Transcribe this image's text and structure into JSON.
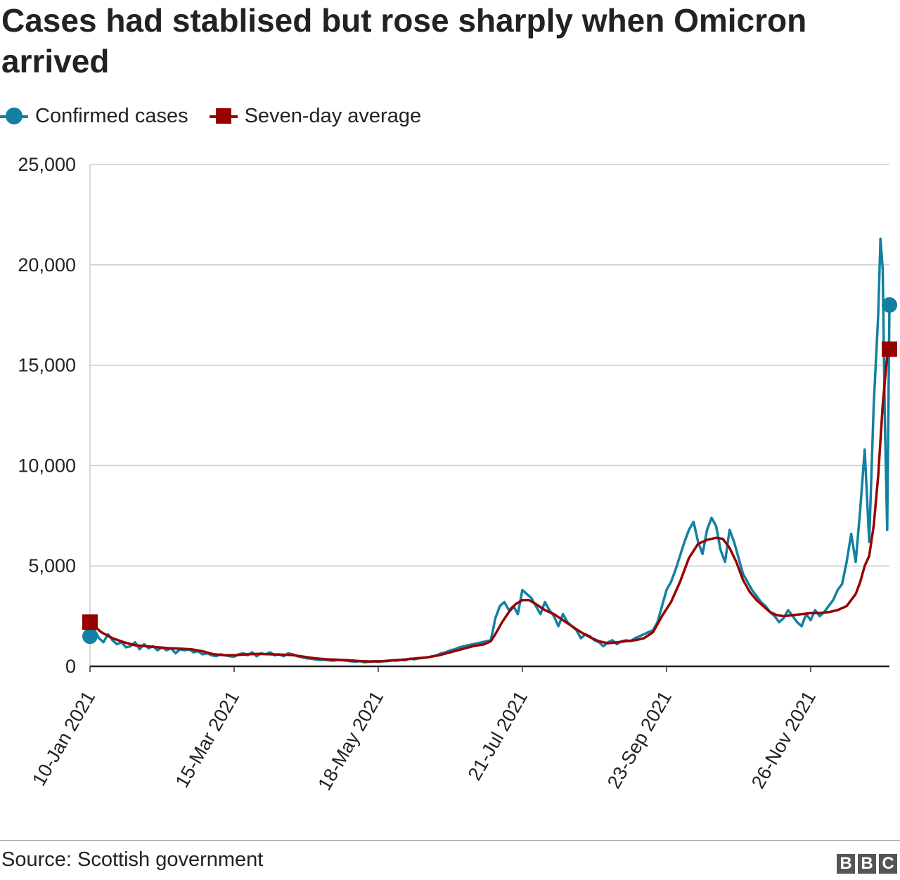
{
  "title": "Cases had stablised but rose sharply when Omicron arrived",
  "legend": [
    {
      "label": "Confirmed cases",
      "color": "#1380A1",
      "marker": "circle"
    },
    {
      "label": "Seven-day average",
      "color": "#990000",
      "marker": "square"
    }
  ],
  "source": "Source: Scottish government",
  "logo": [
    "B",
    "B",
    "C"
  ],
  "chart_data": {
    "type": "line",
    "title": "Cases had stablised but rose sharply when Omicron arrived",
    "xlabel": "",
    "ylabel": "",
    "ylim": [
      0,
      25000
    ],
    "y_ticks": [
      0,
      5000,
      10000,
      15000,
      20000,
      25000
    ],
    "y_tick_labels": [
      "0",
      "5,000",
      "10,000",
      "15,000",
      "20,000",
      "25,000"
    ],
    "x_range_days": [
      0,
      355
    ],
    "x_ticks": [
      0,
      64,
      128,
      192,
      256,
      320
    ],
    "x_tick_labels": [
      "10-Jan 2021",
      "15-Mar 2021",
      "18-May 2021",
      "21-Jul 2021",
      "23-Sep 2021",
      "26-Nov 2021"
    ],
    "grid": true,
    "legend_position": "top-left",
    "series": [
      {
        "name": "Confirmed cases",
        "x_unit": "days since 10-Jan 2021",
        "points": [
          [
            0,
            1500
          ],
          [
            2,
            1800
          ],
          [
            4,
            1400
          ],
          [
            6,
            1200
          ],
          [
            8,
            1600
          ],
          [
            10,
            1300
          ],
          [
            12,
            1100
          ],
          [
            14,
            1200
          ],
          [
            16,
            950
          ],
          [
            18,
            1000
          ],
          [
            20,
            1200
          ],
          [
            22,
            850
          ],
          [
            24,
            1100
          ],
          [
            26,
            900
          ],
          [
            28,
            1000
          ],
          [
            30,
            800
          ],
          [
            32,
            950
          ],
          [
            34,
            800
          ],
          [
            36,
            900
          ],
          [
            38,
            650
          ],
          [
            40,
            850
          ],
          [
            42,
            800
          ],
          [
            44,
            850
          ],
          [
            46,
            700
          ],
          [
            48,
            750
          ],
          [
            50,
            600
          ],
          [
            52,
            650
          ],
          [
            54,
            550
          ],
          [
            56,
            500
          ],
          [
            58,
            600
          ],
          [
            60,
            550
          ],
          [
            62,
            500
          ],
          [
            64,
            480
          ],
          [
            66,
            600
          ],
          [
            68,
            650
          ],
          [
            70,
            550
          ],
          [
            72,
            700
          ],
          [
            74,
            500
          ],
          [
            76,
            650
          ],
          [
            78,
            600
          ],
          [
            80,
            700
          ],
          [
            82,
            550
          ],
          [
            84,
            600
          ],
          [
            86,
            500
          ],
          [
            88,
            650
          ],
          [
            90,
            600
          ],
          [
            92,
            500
          ],
          [
            94,
            450
          ],
          [
            96,
            400
          ],
          [
            98,
            380
          ],
          [
            100,
            350
          ],
          [
            102,
            320
          ],
          [
            104,
            330
          ],
          [
            106,
            300
          ],
          [
            108,
            280
          ],
          [
            110,
            320
          ],
          [
            112,
            300
          ],
          [
            114,
            280
          ],
          [
            116,
            250
          ],
          [
            118,
            230
          ],
          [
            120,
            260
          ],
          [
            122,
            200
          ],
          [
            124,
            230
          ],
          [
            126,
            260
          ],
          [
            128,
            220
          ],
          [
            130,
            250
          ],
          [
            132,
            260
          ],
          [
            134,
            300
          ],
          [
            136,
            280
          ],
          [
            138,
            320
          ],
          [
            140,
            300
          ],
          [
            142,
            380
          ],
          [
            144,
            350
          ],
          [
            146,
            400
          ],
          [
            148,
            420
          ],
          [
            150,
            450
          ],
          [
            152,
            500
          ],
          [
            154,
            550
          ],
          [
            156,
            650
          ],
          [
            158,
            700
          ],
          [
            160,
            800
          ],
          [
            162,
            850
          ],
          [
            164,
            950
          ],
          [
            166,
            1000
          ],
          [
            168,
            1050
          ],
          [
            170,
            1100
          ],
          [
            172,
            1150
          ],
          [
            174,
            1200
          ],
          [
            176,
            1250
          ],
          [
            178,
            1300
          ],
          [
            180,
            2400
          ],
          [
            182,
            3000
          ],
          [
            184,
            3200
          ],
          [
            186,
            2800
          ],
          [
            188,
            3000
          ],
          [
            190,
            2600
          ],
          [
            192,
            3800
          ],
          [
            194,
            3600
          ],
          [
            196,
            3400
          ],
          [
            198,
            3000
          ],
          [
            200,
            2600
          ],
          [
            202,
            3200
          ],
          [
            204,
            2800
          ],
          [
            206,
            2500
          ],
          [
            208,
            2000
          ],
          [
            210,
            2600
          ],
          [
            212,
            2200
          ],
          [
            214,
            2000
          ],
          [
            216,
            1800
          ],
          [
            218,
            1400
          ],
          [
            220,
            1600
          ],
          [
            222,
            1500
          ],
          [
            224,
            1300
          ],
          [
            226,
            1200
          ],
          [
            228,
            1000
          ],
          [
            230,
            1200
          ],
          [
            232,
            1300
          ],
          [
            234,
            1100
          ],
          [
            236,
            1250
          ],
          [
            238,
            1300
          ],
          [
            240,
            1250
          ],
          [
            242,
            1400
          ],
          [
            244,
            1500
          ],
          [
            246,
            1600
          ],
          [
            248,
            1700
          ],
          [
            250,
            1800
          ],
          [
            252,
            2200
          ],
          [
            254,
            3000
          ],
          [
            256,
            3800
          ],
          [
            258,
            4200
          ],
          [
            260,
            4800
          ],
          [
            262,
            5500
          ],
          [
            264,
            6200
          ],
          [
            266,
            6800
          ],
          [
            268,
            7200
          ],
          [
            270,
            6200
          ],
          [
            272,
            5600
          ],
          [
            274,
            6800
          ],
          [
            276,
            7400
          ],
          [
            278,
            7000
          ],
          [
            280,
            5800
          ],
          [
            282,
            5200
          ],
          [
            284,
            6800
          ],
          [
            286,
            6200
          ],
          [
            288,
            5400
          ],
          [
            290,
            4600
          ],
          [
            292,
            4200
          ],
          [
            294,
            3800
          ],
          [
            296,
            3500
          ],
          [
            298,
            3200
          ],
          [
            300,
            3000
          ],
          [
            302,
            2700
          ],
          [
            304,
            2500
          ],
          [
            306,
            2200
          ],
          [
            308,
            2400
          ],
          [
            310,
            2800
          ],
          [
            312,
            2500
          ],
          [
            314,
            2200
          ],
          [
            316,
            2000
          ],
          [
            318,
            2600
          ],
          [
            320,
            2300
          ],
          [
            322,
            2800
          ],
          [
            324,
            2500
          ],
          [
            326,
            2700
          ],
          [
            328,
            3000
          ],
          [
            330,
            3300
          ],
          [
            332,
            3800
          ],
          [
            334,
            4100
          ],
          [
            336,
            5200
          ],
          [
            338,
            6600
          ],
          [
            340,
            5200
          ],
          [
            342,
            7800
          ],
          [
            344,
            10800
          ],
          [
            346,
            6200
          ],
          [
            348,
            13000
          ],
          [
            350,
            17500
          ],
          [
            351,
            21300
          ],
          [
            352,
            19800
          ],
          [
            353,
            12000
          ],
          [
            354,
            6800
          ],
          [
            355,
            18000
          ]
        ]
      },
      {
        "name": "Seven-day average",
        "x_unit": "days since 10-Jan 2021",
        "points": [
          [
            0,
            2200
          ],
          [
            5,
            1700
          ],
          [
            10,
            1400
          ],
          [
            15,
            1200
          ],
          [
            20,
            1050
          ],
          [
            25,
            1000
          ],
          [
            30,
            950
          ],
          [
            35,
            900
          ],
          [
            40,
            880
          ],
          [
            45,
            850
          ],
          [
            50,
            750
          ],
          [
            55,
            600
          ],
          [
            60,
            550
          ],
          [
            65,
            560
          ],
          [
            70,
            600
          ],
          [
            75,
            620
          ],
          [
            80,
            600
          ],
          [
            85,
            580
          ],
          [
            90,
            560
          ],
          [
            95,
            480
          ],
          [
            100,
            400
          ],
          [
            105,
            350
          ],
          [
            110,
            330
          ],
          [
            115,
            300
          ],
          [
            120,
            260
          ],
          [
            125,
            240
          ],
          [
            130,
            260
          ],
          [
            135,
            300
          ],
          [
            140,
            340
          ],
          [
            145,
            400
          ],
          [
            150,
            450
          ],
          [
            155,
            550
          ],
          [
            160,
            700
          ],
          [
            165,
            850
          ],
          [
            170,
            1000
          ],
          [
            175,
            1100
          ],
          [
            178,
            1250
          ],
          [
            180,
            1600
          ],
          [
            183,
            2200
          ],
          [
            186,
            2700
          ],
          [
            189,
            3100
          ],
          [
            192,
            3300
          ],
          [
            195,
            3300
          ],
          [
            198,
            3100
          ],
          [
            202,
            2800
          ],
          [
            206,
            2600
          ],
          [
            210,
            2300
          ],
          [
            214,
            2000
          ],
          [
            218,
            1700
          ],
          [
            222,
            1450
          ],
          [
            226,
            1250
          ],
          [
            230,
            1150
          ],
          [
            234,
            1200
          ],
          [
            238,
            1250
          ],
          [
            242,
            1300
          ],
          [
            246,
            1400
          ],
          [
            250,
            1700
          ],
          [
            254,
            2500
          ],
          [
            258,
            3200
          ],
          [
            262,
            4200
          ],
          [
            266,
            5400
          ],
          [
            270,
            6100
          ],
          [
            274,
            6300
          ],
          [
            278,
            6400
          ],
          [
            281,
            6350
          ],
          [
            284,
            5900
          ],
          [
            287,
            5200
          ],
          [
            290,
            4300
          ],
          [
            293,
            3700
          ],
          [
            296,
            3300
          ],
          [
            299,
            3000
          ],
          [
            302,
            2700
          ],
          [
            305,
            2550
          ],
          [
            308,
            2500
          ],
          [
            312,
            2550
          ],
          [
            316,
            2600
          ],
          [
            320,
            2650
          ],
          [
            324,
            2650
          ],
          [
            328,
            2700
          ],
          [
            332,
            2800
          ],
          [
            336,
            3000
          ],
          [
            340,
            3600
          ],
          [
            342,
            4200
          ],
          [
            344,
            5000
          ],
          [
            346,
            5500
          ],
          [
            348,
            7000
          ],
          [
            350,
            9500
          ],
          [
            352,
            13000
          ],
          [
            354,
            15500
          ],
          [
            355,
            15800
          ]
        ]
      }
    ]
  }
}
